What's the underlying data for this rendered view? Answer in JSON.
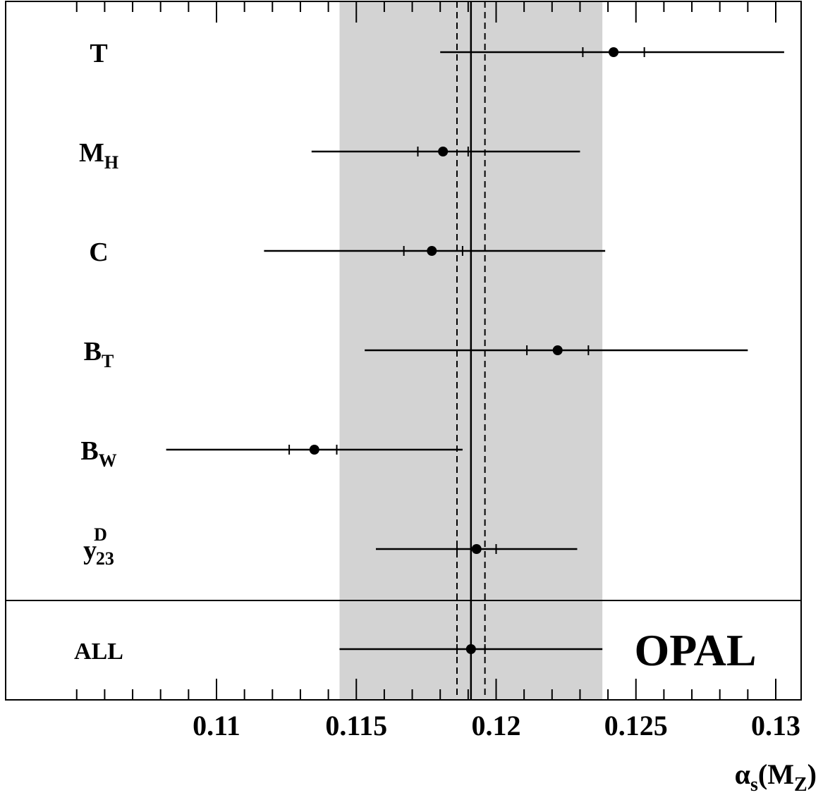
{
  "chart_data": {
    "type": "scatter",
    "brand": "OPAL",
    "x_axis": {
      "title": "α",
      "title_sub": "s",
      "title_paren": "(M",
      "title_paren_sub": "Z",
      "title_close": ")",
      "range": [
        0.105,
        0.1322
      ],
      "tick_labels": [
        "0.11",
        "0.115",
        "0.12",
        "0.125",
        "0.13"
      ],
      "major_ticks": [
        0.11,
        0.115,
        0.12,
        0.125,
        0.13
      ],
      "minor_tick_step": 0.001
    },
    "combined": {
      "value": 0.1191,
      "stat_band": [
        0.1186,
        0.1196
      ],
      "total_band": [
        0.1144,
        0.1238
      ]
    },
    "measurements": [
      {
        "main": "T",
        "sub": "",
        "sup": "",
        "value": 0.1242,
        "inner": [
          0.1231,
          0.1253
        ],
        "outer": [
          0.118,
          0.1303
        ]
      },
      {
        "main": "M",
        "sub": "H",
        "sup": "",
        "value": 0.1181,
        "inner": [
          0.1172,
          0.119
        ],
        "outer": [
          0.1134,
          0.123
        ]
      },
      {
        "main": "C",
        "sub": "",
        "sup": "",
        "value": 0.1177,
        "inner": [
          0.1167,
          0.1188
        ],
        "outer": [
          0.1117,
          0.1239
        ]
      },
      {
        "main": "B",
        "sub": "T",
        "sup": "",
        "value": 0.1222,
        "inner": [
          0.1211,
          0.1233
        ],
        "outer": [
          0.1153,
          0.129
        ]
      },
      {
        "main": "B",
        "sub": "W",
        "sup": "",
        "value": 0.1135,
        "inner": [
          0.1126,
          0.1143
        ],
        "outer": [
          0.1082,
          0.1188
        ]
      },
      {
        "main": "y",
        "sub": "23",
        "sup": "D",
        "value": 0.1193,
        "inner": [
          0.1186,
          0.12
        ],
        "outer": [
          0.1157,
          0.1229
        ]
      },
      {
        "main": "ALL",
        "sub": "",
        "sup": "",
        "value": 0.1191,
        "inner": [
          0.1186,
          0.1196
        ],
        "outer": [
          0.1144,
          0.1238
        ]
      }
    ],
    "colors": {
      "band": "#d3d3d3",
      "ink": "#000000"
    },
    "legend": "none",
    "grid": false
  }
}
